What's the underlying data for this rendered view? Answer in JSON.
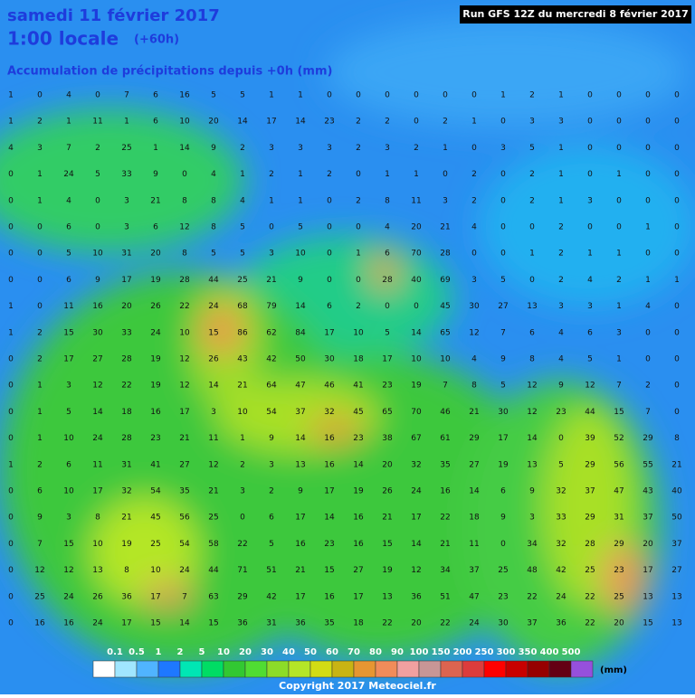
{
  "header": {
    "title": "samedi 11 février 2017",
    "time": "1:00 locale",
    "lead": "(+60h)",
    "subtitle": "Accumulation de précipitations depuis +0h (mm)",
    "run": "Run GFS 12Z du mercredi 8 février 2017"
  },
  "grid": {
    "rows": [
      [
        1,
        0,
        4,
        0,
        7,
        6,
        16,
        5,
        5,
        1,
        1,
        0,
        0,
        0,
        0,
        0,
        0,
        1,
        2,
        1,
        0,
        0,
        0,
        0
      ],
      [
        1,
        2,
        1,
        11,
        1,
        6,
        10,
        20,
        14,
        17,
        14,
        23,
        2,
        2,
        0,
        2,
        1,
        0,
        3,
        3,
        0,
        0,
        0,
        0
      ],
      [
        4,
        3,
        7,
        2,
        25,
        1,
        14,
        9,
        2,
        3,
        3,
        3,
        2,
        3,
        2,
        1,
        0,
        3,
        5,
        1,
        0,
        0,
        0,
        0
      ],
      [
        0,
        1,
        24,
        5,
        33,
        9,
        0,
        4,
        1,
        2,
        1,
        2,
        0,
        1,
        1,
        0,
        2,
        0,
        2,
        1,
        0,
        1,
        0,
        0
      ],
      [
        0,
        1,
        4,
        0,
        3,
        21,
        8,
        8,
        4,
        1,
        1,
        0,
        2,
        8,
        11,
        3,
        2,
        0,
        2,
        1,
        3,
        0,
        0,
        0
      ],
      [
        0,
        0,
        6,
        0,
        3,
        6,
        12,
        8,
        5,
        0,
        5,
        0,
        0,
        4,
        20,
        21,
        4,
        0,
        0,
        2,
        0,
        0,
        1,
        0
      ],
      [
        0,
        0,
        5,
        10,
        31,
        20,
        8,
        5,
        5,
        3,
        10,
        0,
        1,
        6,
        70,
        28,
        0,
        0,
        1,
        2,
        1,
        1,
        0,
        0
      ],
      [
        0,
        0,
        6,
        9,
        17,
        19,
        28,
        44,
        25,
        21,
        9,
        0,
        0,
        28,
        40,
        69,
        3,
        5,
        0,
        2,
        4,
        2,
        1,
        1
      ],
      [
        1,
        0,
        11,
        16,
        20,
        26,
        22,
        24,
        68,
        79,
        14,
        6,
        2,
        0,
        0,
        45,
        30,
        27,
        13,
        3,
        3,
        1,
        4,
        0
      ],
      [
        1,
        2,
        15,
        30,
        33,
        24,
        10,
        15,
        86,
        62,
        84,
        17,
        10,
        5,
        14,
        65,
        12,
        7,
        6,
        4,
        6,
        3,
        0,
        0
      ],
      [
        0,
        2,
        17,
        27,
        28,
        19,
        12,
        26,
        43,
        42,
        50,
        30,
        18,
        17,
        10,
        10,
        4,
        9,
        8,
        4,
        5,
        1,
        0,
        0
      ],
      [
        0,
        1,
        3,
        12,
        22,
        19,
        12,
        14,
        21,
        64,
        47,
        46,
        41,
        23,
        19,
        7,
        8,
        5,
        12,
        9,
        12,
        7,
        2,
        0
      ],
      [
        0,
        1,
        5,
        14,
        18,
        16,
        17,
        3,
        10,
        54,
        37,
        32,
        45,
        65,
        70,
        46,
        21,
        30,
        12,
        23,
        44,
        15,
        7,
        0
      ],
      [
        0,
        1,
        10,
        24,
        28,
        23,
        21,
        11,
        1,
        9,
        14,
        16,
        23,
        38,
        67,
        61,
        29,
        17,
        14,
        0,
        39,
        52,
        29,
        8
      ],
      [
        1,
        2,
        6,
        11,
        31,
        41,
        27,
        12,
        2,
        3,
        13,
        16,
        14,
        20,
        32,
        35,
        27,
        19,
        13,
        5,
        29,
        56,
        55,
        21
      ],
      [
        0,
        6,
        10,
        17,
        32,
        54,
        35,
        21,
        3,
        2,
        9,
        17,
        19,
        26,
        24,
        16,
        14,
        6,
        9,
        32,
        37,
        47,
        43,
        40
      ],
      [
        0,
        9,
        3,
        8,
        21,
        45,
        56,
        25,
        0,
        6,
        17,
        14,
        16,
        21,
        17,
        22,
        18,
        9,
        3,
        33,
        29,
        31,
        37,
        50
      ],
      [
        0,
        7,
        15,
        10,
        19,
        25,
        54,
        58,
        22,
        5,
        16,
        23,
        16,
        15,
        14,
        21,
        11,
        0,
        34,
        32,
        28,
        29,
        20,
        37
      ],
      [
        0,
        12,
        12,
        13,
        8,
        10,
        24,
        44,
        71,
        51,
        21,
        15,
        27,
        19,
        12,
        34,
        37,
        25,
        48,
        42,
        25,
        23,
        17,
        27
      ],
      [
        0,
        25,
        24,
        26,
        36,
        17,
        7,
        63,
        29,
        42,
        17,
        16,
        17,
        13,
        36,
        51,
        47,
        23,
        22,
        24,
        22,
        25,
        13,
        13
      ],
      [
        0,
        16,
        16,
        24,
        17,
        15,
        14,
        15,
        36,
        31,
        36,
        35,
        18,
        22,
        20,
        22,
        24,
        30,
        37,
        36,
        22,
        20,
        15,
        13
      ]
    ]
  },
  "legend": {
    "labels": [
      "0.1",
      "0.5",
      "1",
      "2",
      "5",
      "10",
      "20",
      "30",
      "40",
      "50",
      "60",
      "70",
      "80",
      "90",
      "100",
      "150",
      "200",
      "250",
      "300",
      "350",
      "400",
      "500"
    ],
    "colors": [
      "#ffffff",
      "#a0e6ff",
      "#50b4ff",
      "#1e78ff",
      "#00e6b4",
      "#00dc64",
      "#32c832",
      "#50dc32",
      "#8cdc28",
      "#b4e628",
      "#d2dc14",
      "#c8b414",
      "#e69632",
      "#f08c5a",
      "#f0a0a0",
      "#c89696",
      "#dc6450",
      "#dc3c3c",
      "#ff0000",
      "#c80000",
      "#960000",
      "#640014",
      "#9650dc"
    ],
    "unit": "(mm)"
  },
  "footer": {
    "copyright": "Copyright 2017 Meteociel.fr"
  }
}
